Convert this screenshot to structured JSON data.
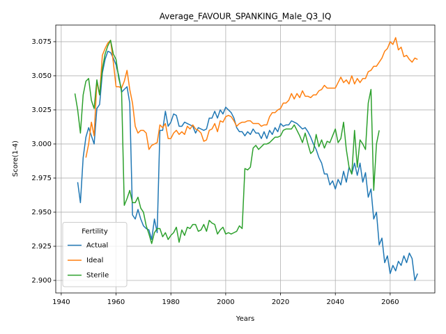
{
  "chart_data": {
    "type": "line",
    "title": "Average_FAVOUR_SPANKING_Male_Q3_IQ",
    "x_label": "Years",
    "y_label": "Score(1-4)",
    "x": [
      1945,
      1946,
      1947,
      1948,
      1949,
      1950,
      1951,
      1952,
      1953,
      1954,
      1955,
      1956,
      1957,
      1958,
      1959,
      1960,
      1961,
      1962,
      1963,
      1964,
      1965,
      1966,
      1967,
      1968,
      1969,
      1970,
      1971,
      1972,
      1973,
      1974,
      1975,
      1976,
      1977,
      1978,
      1979,
      1980,
      1981,
      1982,
      1983,
      1984,
      1985,
      1986,
      1987,
      1988,
      1989,
      1990,
      1991,
      1992,
      1993,
      1994,
      1995,
      1996,
      1997,
      1998,
      1999,
      2000,
      2001,
      2002,
      2003,
      2004,
      2005,
      2006,
      2007,
      2008,
      2009,
      2010,
      2011,
      2012,
      2013,
      2014,
      2015,
      2016,
      2017,
      2018,
      2019,
      2020,
      2021,
      2022,
      2023,
      2024,
      2025,
      2026,
      2027,
      2028,
      2029,
      2030,
      2031,
      2032,
      2033,
      2034,
      2035,
      2036,
      2037,
      2038,
      2039,
      2040,
      2041,
      2042,
      2043,
      2044,
      2045,
      2046,
      2047,
      2048,
      2049,
      2050,
      2051,
      2052,
      2053,
      2054,
      2055,
      2056,
      2057,
      2058,
      2059,
      2060,
      2061,
      2062,
      2063,
      2064,
      2065,
      2066,
      2067,
      2068,
      2069,
      2070
    ],
    "series": [
      {
        "name": "Actual",
        "color": "#1f77b4",
        "values": [
          null,
          2.972,
          2.957,
          2.99,
          3.005,
          3.012,
          3.006,
          3.0,
          3.026,
          3.029,
          3.052,
          3.062,
          3.068,
          3.067,
          3.063,
          3.058,
          3.05,
          3.038,
          3.04,
          3.042,
          3.03,
          2.948,
          2.945,
          2.952,
          2.945,
          2.94,
          2.938,
          2.937,
          2.93,
          2.945,
          2.935,
          3.01,
          3.01,
          3.024,
          3.013,
          3.016,
          3.022,
          3.021,
          3.013,
          3.013,
          3.016,
          3.015,
          3.014,
          3.013,
          3.008,
          3.012,
          3.011,
          3.01,
          3.011,
          3.019,
          3.019,
          3.024,
          3.019,
          3.025,
          3.022,
          3.027,
          3.025,
          3.023,
          3.019,
          3.012,
          3.009,
          3.009,
          3.006,
          3.009,
          3.007,
          3.011,
          3.008,
          3.008,
          3.004,
          3.009,
          3.004,
          3.01,
          3.007,
          3.012,
          3.009,
          3.015,
          3.013,
          3.014,
          3.014,
          3.017,
          3.016,
          3.015,
          3.013,
          3.011,
          3.012,
          3.009,
          3.005,
          3.0,
          2.996,
          2.99,
          2.986,
          2.978,
          2.978,
          2.97,
          2.973,
          2.967,
          2.974,
          2.97,
          2.98,
          2.972,
          2.983,
          2.978,
          2.986,
          2.977,
          2.986,
          2.972,
          2.979,
          2.961,
          2.967,
          2.945,
          2.95,
          2.926,
          2.931,
          2.913,
          2.918,
          2.905,
          2.911,
          2.907,
          2.914,
          2.911,
          2.918,
          2.913,
          2.92,
          2.916,
          2.9,
          2.905
        ]
      },
      {
        "name": "Ideal",
        "color": "#ff7f0e",
        "values": [
          null,
          null,
          null,
          null,
          2.99,
          3.0,
          3.016,
          3.006,
          3.046,
          3.036,
          3.065,
          3.07,
          3.074,
          3.076,
          3.06,
          3.042,
          3.042,
          3.041,
          3.046,
          3.054,
          3.04,
          3.03,
          3.013,
          3.008,
          3.01,
          3.01,
          3.008,
          2.996,
          2.999,
          3.0,
          3.001,
          3.014,
          3.012,
          3.015,
          3.004,
          3.004,
          3.008,
          3.01,
          3.007,
          3.009,
          3.007,
          3.013,
          3.011,
          3.014,
          3.011,
          3.01,
          3.008,
          3.002,
          3.003,
          3.01,
          3.011,
          3.015,
          3.009,
          3.017,
          3.016,
          3.02,
          3.021,
          3.02,
          3.017,
          3.013,
          3.015,
          3.016,
          3.016,
          3.017,
          3.017,
          3.015,
          3.015,
          3.015,
          3.013,
          3.014,
          3.014,
          3.02,
          3.023,
          3.023,
          3.025,
          3.026,
          3.03,
          3.03,
          3.032,
          3.037,
          3.033,
          3.037,
          3.034,
          3.039,
          3.035,
          3.035,
          3.034,
          3.036,
          3.036,
          3.039,
          3.04,
          3.043,
          3.041,
          3.041,
          3.041,
          3.041,
          3.045,
          3.049,
          3.045,
          3.047,
          3.044,
          3.05,
          3.044,
          3.048,
          3.045,
          3.048,
          3.048,
          3.053,
          3.054,
          3.057,
          3.057,
          3.06,
          3.063,
          3.068,
          3.07,
          3.075,
          3.073,
          3.078,
          3.069,
          3.071,
          3.064,
          3.065,
          3.062,
          3.06,
          3.063,
          3.062
        ]
      },
      {
        "name": "Sterile",
        "color": "#2ca02c",
        "values": [
          3.037,
          3.025,
          3.008,
          3.036,
          3.046,
          3.048,
          3.032,
          3.026,
          3.047,
          3.036,
          3.055,
          3.066,
          3.072,
          3.076,
          3.066,
          3.062,
          3.048,
          3.04,
          2.955,
          2.96,
          2.966,
          2.957,
          2.957,
          2.961,
          2.953,
          2.95,
          2.94,
          2.934,
          2.927,
          2.935,
          2.938,
          2.938,
          2.932,
          2.935,
          2.93,
          2.933,
          2.935,
          2.939,
          2.928,
          2.937,
          2.933,
          2.939,
          2.938,
          2.941,
          2.941,
          2.936,
          2.937,
          2.941,
          2.936,
          2.944,
          2.942,
          2.941,
          2.934,
          2.937,
          2.939,
          2.934,
          2.935,
          2.934,
          2.935,
          2.936,
          2.94,
          2.938,
          2.982,
          2.981,
          2.983,
          2.997,
          2.999,
          2.996,
          2.998,
          3.0,
          3.0,
          3.001,
          3.003,
          3.005,
          3.005,
          3.006,
          3.01,
          3.011,
          3.011,
          3.011,
          3.014,
          3.01,
          3.006,
          3.001,
          3.008,
          3.0,
          2.993,
          2.995,
          3.007,
          2.998,
          3.003,
          2.997,
          3.002,
          3.001,
          3.006,
          3.011,
          3.001,
          3.004,
          3.016,
          2.996,
          2.983,
          2.978,
          3.01,
          2.983,
          3.003,
          3.0,
          2.996,
          3.03,
          3.04,
          2.966,
          3.0,
          3.01,
          null,
          null,
          null,
          null,
          null,
          null,
          null,
          null,
          null,
          null,
          null,
          null,
          null,
          null
        ]
      }
    ],
    "xlim": [
      1938,
      2076.3
    ],
    "ylim": [
      2.8908,
      3.0872
    ],
    "xticks": [
      1940,
      1960,
      1980,
      2000,
      2020,
      2040,
      2060
    ],
    "yticks": [
      {
        "value": 2.9,
        "label": "2.900"
      },
      {
        "value": 2.925,
        "label": "2.925"
      },
      {
        "value": 2.95,
        "label": "2.950"
      },
      {
        "value": 2.975,
        "label": "2.975"
      },
      {
        "value": 3.0,
        "label": "3.000"
      },
      {
        "value": 3.025,
        "label": "3.025"
      },
      {
        "value": 3.05,
        "label": "3.050"
      },
      {
        "value": 3.075,
        "label": "3.075"
      }
    ],
    "grid": true,
    "legend": "lower left",
    "legend_title": "Fertility"
  }
}
